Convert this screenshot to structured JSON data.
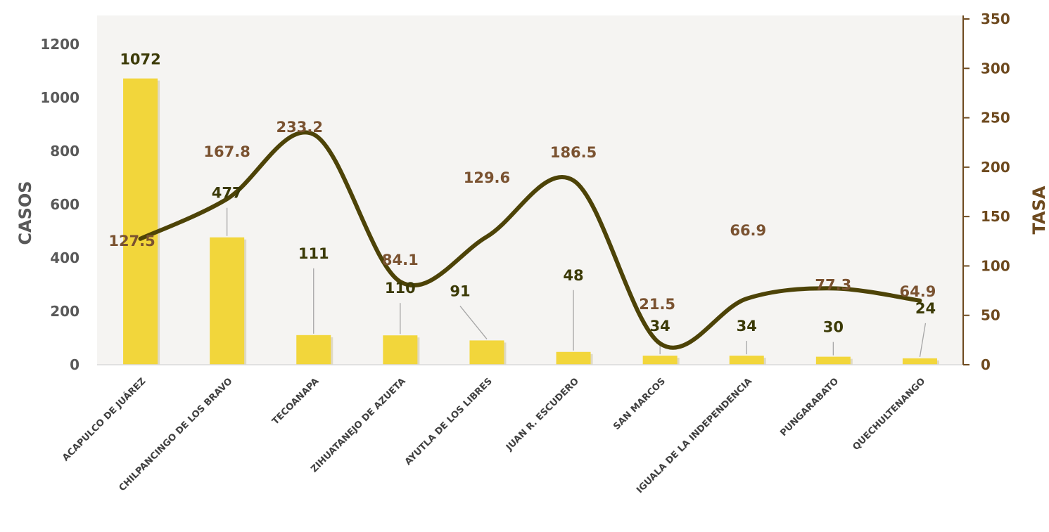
{
  "chart_data": {
    "type": "bar",
    "categories": [
      "ACAPULCO DE JUÁREZ",
      "CHILPANCINGO DE LOS BRAVO",
      "TECOANAPA",
      "ZIHUATANEJO DE AZUETA",
      "AYUTLA DE LOS LIBRES",
      "JUAN R. ESCUDERO",
      "SAN MARCOS",
      "IGUALA DE LA INDEPENDENCIA",
      "PUNGARABATO",
      "QUECHULTENANGO"
    ],
    "series": [
      {
        "type": "bar",
        "axis": "left",
        "values": [
          1072,
          477,
          111,
          110,
          91,
          48,
          34,
          34,
          30,
          24
        ],
        "labels": [
          "1072",
          "477",
          "111",
          "110",
          "91",
          "48",
          "34",
          "34",
          "30",
          "24"
        ],
        "color": "#f2d63b"
      },
      {
        "type": "line",
        "axis": "right",
        "values": [
          127.5,
          167.8,
          233.2,
          84.1,
          129.6,
          186.5,
          21.5,
          66.9,
          77.3,
          64.9
        ],
        "labels": [
          "127.5",
          "167.8",
          "233.2",
          "84.1",
          "129.6",
          "186.5",
          "21.5",
          "66.9",
          "77.3",
          "64.9"
        ],
        "color": "#4d4307"
      }
    ],
    "ylabel": "CASOS",
    "ylabel_right": "TASA",
    "ylim": [
      0,
      1200
    ],
    "ylim_right": [
      0,
      350
    ],
    "yticks": [
      "0",
      "200",
      "400",
      "600",
      "800",
      "1000",
      "1200"
    ],
    "yticks_right": [
      "0",
      "50",
      "100",
      "150",
      "200",
      "250",
      "300",
      "350"
    ],
    "grid": false,
    "legend": "none",
    "colors": {
      "bar": "#f2d63b",
      "line": "#4d4307",
      "plot_background": "#f5f4f2",
      "bar_label": "#3b3a06",
      "line_label": "#7a5230"
    }
  }
}
